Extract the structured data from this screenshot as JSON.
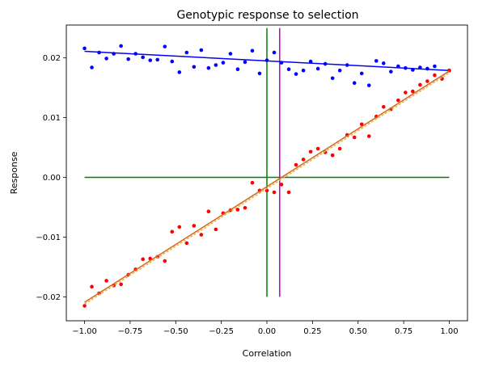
{
  "chart_data": {
    "type": "scatter",
    "title": "Genotypic response to selection",
    "xlabel": "Correlation",
    "ylabel": "Response",
    "xlim": [
      -1.1,
      1.1
    ],
    "ylim": [
      -0.024,
      0.0255
    ],
    "xticks": [
      -1.0,
      -0.75,
      -0.5,
      -0.25,
      0.0,
      0.25,
      0.5,
      0.75,
      1.0
    ],
    "xtick_labels": [
      "−1.00",
      "−0.75",
      "−0.50",
      "−0.25",
      "0.00",
      "0.25",
      "0.50",
      "0.75",
      "1.00"
    ],
    "yticks": [
      -0.02,
      -0.01,
      0.0,
      0.01,
      0.02
    ],
    "ytick_labels": [
      "−0.02",
      "−0.01",
      "0.00",
      "0.01",
      "0.02"
    ],
    "grid": false,
    "legend": "none",
    "series": [
      {
        "kind": "points",
        "color": "#0000ff",
        "x": [
          -1.0,
          -0.96,
          -0.92,
          -0.88,
          -0.84,
          -0.8,
          -0.76,
          -0.72,
          -0.68,
          -0.64,
          -0.6,
          -0.56,
          -0.52,
          -0.48,
          -0.44,
          -0.4,
          -0.36,
          -0.32,
          -0.28,
          -0.24,
          -0.2,
          -0.16,
          -0.12,
          -0.08,
          -0.04,
          0.0,
          0.04,
          0.08,
          0.12,
          0.16,
          0.2,
          0.24,
          0.28,
          0.32,
          0.36,
          0.4,
          0.44,
          0.48,
          0.52,
          0.56,
          0.6,
          0.64,
          0.68,
          0.72,
          0.76,
          0.8,
          0.84,
          0.88,
          0.92,
          0.96,
          1.0
        ],
        "y": [
          0.0216,
          0.0184,
          0.0209,
          0.0199,
          0.0207,
          0.022,
          0.0198,
          0.0207,
          0.0201,
          0.0196,
          0.0197,
          0.0219,
          0.0194,
          0.0176,
          0.0209,
          0.0185,
          0.0213,
          0.0183,
          0.0188,
          0.0192,
          0.0207,
          0.0181,
          0.0193,
          0.0212,
          0.0174,
          0.0196,
          0.0209,
          0.0192,
          0.0181,
          0.0173,
          0.0179,
          0.0194,
          0.0182,
          0.019,
          0.0166,
          0.0179,
          0.0188,
          0.0158,
          0.0174,
          0.0154,
          0.0195,
          0.0191,
          0.0177,
          0.0186,
          0.0183,
          0.018,
          0.0184,
          0.0182,
          0.0186,
          0.0165,
          0.0179
        ]
      },
      {
        "kind": "line",
        "color": "#0000ff",
        "x": [
          -1.0,
          1.0
        ],
        "y": [
          0.0211,
          0.0179
        ]
      },
      {
        "kind": "points",
        "color": "#ff0000",
        "x": [
          -1.0,
          -0.96,
          -0.92,
          -0.88,
          -0.84,
          -0.8,
          -0.76,
          -0.72,
          -0.68,
          -0.64,
          -0.6,
          -0.56,
          -0.52,
          -0.48,
          -0.44,
          -0.4,
          -0.36,
          -0.32,
          -0.28,
          -0.24,
          -0.2,
          -0.16,
          -0.12,
          -0.08,
          -0.04,
          0.0,
          0.04,
          0.08,
          0.12,
          0.16,
          0.2,
          0.24,
          0.28,
          0.32,
          0.36,
          0.4,
          0.44,
          0.48,
          0.52,
          0.56,
          0.6,
          0.64,
          0.68,
          0.72,
          0.76,
          0.8,
          0.84,
          0.88,
          0.92,
          0.96,
          1.0
        ],
        "y": [
          -0.0215,
          -0.0183,
          -0.0194,
          -0.0173,
          -0.0181,
          -0.0179,
          -0.0163,
          -0.0154,
          -0.0137,
          -0.0136,
          -0.0133,
          -0.014,
          -0.0091,
          -0.0083,
          -0.011,
          -0.0081,
          -0.0096,
          -0.0057,
          -0.0087,
          -0.006,
          -0.0055,
          -0.0054,
          -0.0051,
          -0.0009,
          -0.0022,
          -0.0022,
          -0.0025,
          -0.0012,
          -0.0025,
          0.0021,
          0.003,
          0.0043,
          0.0048,
          0.0042,
          0.0037,
          0.0048,
          0.0071,
          0.0067,
          0.0089,
          0.0069,
          0.0102,
          0.0118,
          0.0114,
          0.0129,
          0.0142,
          0.0144,
          0.0155,
          0.0161,
          0.0171,
          0.0165,
          0.0179
        ]
      },
      {
        "kind": "line",
        "color": "#d2691e",
        "x": [
          -1.0,
          1.0
        ],
        "y": [
          -0.0209,
          0.0178
        ]
      },
      {
        "kind": "dashed-line",
        "color": "#e8b04a",
        "x": [
          -1.0,
          1.0
        ],
        "y": [
          -0.0212,
          0.0175
        ]
      },
      {
        "kind": "line",
        "color": "#008000",
        "x": [
          -1.0,
          1.0
        ],
        "y": [
          0.0,
          0.0
        ]
      },
      {
        "kind": "line",
        "color": "#008000",
        "x": [
          0.0,
          0.0
        ],
        "y": [
          -0.02,
          0.025
        ]
      },
      {
        "kind": "line",
        "color": "#bf00bf",
        "x": [
          0.07,
          0.07
        ],
        "y": [
          -0.02,
          0.025
        ]
      }
    ]
  }
}
